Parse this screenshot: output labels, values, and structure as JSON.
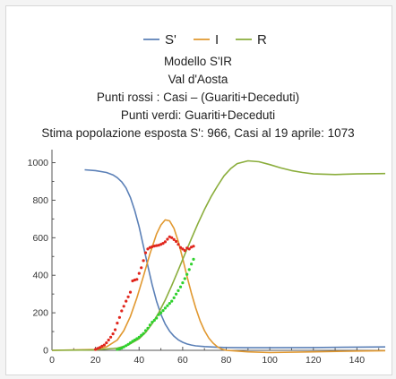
{
  "chart_data": {
    "type": "line",
    "title_lines": [
      "Modello S'IR",
      "Val d'Aosta",
      "Punti rossi : Casi – (Guariti+Deceduti)",
      "Punti verdi: Guariti+Deceduti",
      "Stima popolazione esposta S': 966, Casi al 19 aprile: 1073"
    ],
    "xlabel": "",
    "ylabel": "",
    "xlim": [
      0,
      153
    ],
    "ylim": [
      0,
      1060
    ],
    "x_ticks": [
      0,
      20,
      40,
      60,
      80,
      100,
      120,
      140
    ],
    "y_ticks": [
      0,
      200,
      400,
      600,
      800,
      1000
    ],
    "grid": false,
    "legend_position": "top-center",
    "series": [
      {
        "name": "S'",
        "color": "#5b80b7",
        "x": [
          15,
          20,
          25,
          28,
          30,
          32,
          34,
          36,
          38,
          40,
          42,
          44,
          46,
          48,
          50,
          52,
          54,
          56,
          58,
          60,
          62,
          64,
          66,
          70,
          75,
          80,
          90,
          100,
          120,
          140,
          153
        ],
        "y": [
          962,
          958,
          948,
          935,
          920,
          898,
          865,
          815,
          745,
          658,
          555,
          450,
          350,
          262,
          192,
          140,
          102,
          75,
          56,
          43,
          34,
          28,
          24,
          20,
          17,
          15,
          14,
          14,
          15,
          17,
          18
        ]
      },
      {
        "name": "I",
        "color": "#e1982f",
        "x": [
          0,
          20,
          25,
          30,
          33,
          36,
          39,
          42,
          45,
          48,
          50,
          52,
          54,
          56,
          58,
          60,
          62,
          64,
          66,
          68,
          70,
          72,
          74,
          76,
          78,
          80,
          90,
          100,
          120,
          140,
          153
        ],
        "y": [
          0,
          5,
          18,
          55,
          105,
          180,
          280,
          395,
          515,
          620,
          668,
          695,
          690,
          650,
          580,
          490,
          395,
          305,
          225,
          158,
          105,
          65,
          38,
          18,
          6,
          0,
          -8,
          -12,
          -8,
          -4,
          -2
        ]
      },
      {
        "name": "R",
        "color": "#8aad3b",
        "x": [
          0,
          20,
          30,
          35,
          40,
          43,
          46,
          49,
          52,
          55,
          58,
          61,
          64,
          67,
          70,
          73,
          76,
          79,
          82,
          85,
          90,
          95,
          100,
          105,
          110,
          115,
          120,
          130,
          140,
          153
        ],
        "y": [
          0,
          2,
          12,
          28,
          62,
          95,
          142,
          200,
          268,
          345,
          428,
          512,
          595,
          675,
          750,
          818,
          876,
          930,
          968,
          995,
          1010,
          1005,
          990,
          972,
          958,
          948,
          940,
          937,
          940,
          942
        ]
      }
    ],
    "points_red": {
      "color": "#e0261d",
      "x": [
        20,
        21,
        22,
        23,
        24,
        25,
        26,
        27,
        28,
        29,
        30,
        31,
        32,
        33,
        34,
        35,
        36,
        37,
        38,
        39,
        40,
        41,
        42,
        43,
        44,
        45,
        46,
        47,
        48,
        49,
        50,
        51,
        52,
        53,
        54,
        55,
        56,
        57,
        58,
        59,
        60,
        61,
        62,
        63,
        64,
        65
      ],
      "y": [
        5,
        10,
        15,
        22,
        28,
        40,
        55,
        70,
        88,
        110,
        145,
        175,
        210,
        235,
        262,
        285,
        310,
        370,
        375,
        378,
        410,
        440,
        478,
        520,
        540,
        548,
        552,
        556,
        558,
        560,
        565,
        570,
        578,
        592,
        605,
        600,
        590,
        580,
        565,
        548,
        540,
        532,
        545,
        540,
        550,
        555
      ]
    },
    "points_green": {
      "color": "#2fd12d",
      "x": [
        30,
        31,
        32,
        33,
        34,
        35,
        36,
        37,
        38,
        39,
        40,
        41,
        42,
        43,
        44,
        45,
        46,
        47,
        48,
        49,
        50,
        51,
        52,
        53,
        54,
        55,
        56,
        57,
        58,
        59,
        60,
        61,
        62,
        63,
        64,
        65
      ],
      "y": [
        5,
        8,
        12,
        18,
        25,
        32,
        40,
        48,
        55,
        62,
        70,
        80,
        90,
        105,
        118,
        135,
        150,
        160,
        172,
        190,
        200,
        212,
        225,
        238,
        250,
        262,
        280,
        300,
        318,
        338,
        360,
        382,
        405,
        430,
        460,
        485
      ]
    }
  }
}
